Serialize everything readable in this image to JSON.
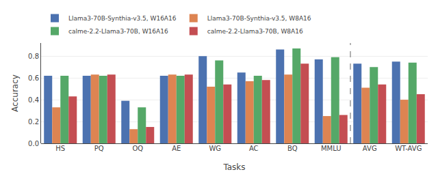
{
  "chart_data": {
    "type": "bar",
    "categories": [
      "HS",
      "PQ",
      "OQ",
      "AE",
      "WG",
      "AC",
      "BQ",
      "MMLU",
      "AVG",
      "WT-AVG"
    ],
    "series": [
      {
        "name": "Llama3-70B-Synthia-v3.5, W16A16",
        "color": "#4c72b0",
        "values": [
          0.62,
          0.62,
          0.39,
          0.62,
          0.8,
          0.65,
          0.86,
          0.77,
          0.73,
          0.75
        ]
      },
      {
        "name": "Llama3-70B-Synthia-v3.5, W8A16",
        "color": "#dd8452",
        "values": [
          0.33,
          0.63,
          0.13,
          0.63,
          0.52,
          0.57,
          0.63,
          0.25,
          0.51,
          0.4
        ]
      },
      {
        "name": "calme-2.2-Llama3-70B, W16A16",
        "color": "#55a868",
        "values": [
          0.62,
          0.62,
          0.33,
          0.62,
          0.76,
          0.62,
          0.87,
          0.79,
          0.7,
          0.74
        ]
      },
      {
        "name": "calme-2.2-Llama3-70B, W8A16",
        "color": "#c44e52",
        "values": [
          0.43,
          0.63,
          0.15,
          0.63,
          0.54,
          0.58,
          0.73,
          0.26,
          0.54,
          0.45
        ]
      }
    ],
    "xlabel": "Tasks",
    "ylabel": "Accuracy",
    "ylim": [
      0.0,
      0.92
    ],
    "yticks": [
      {
        "value": 0.0,
        "label": "0.0"
      },
      0.2,
      0.4,
      0.6,
      0.8
    ],
    "grid": true,
    "legend": "upper left"
  }
}
